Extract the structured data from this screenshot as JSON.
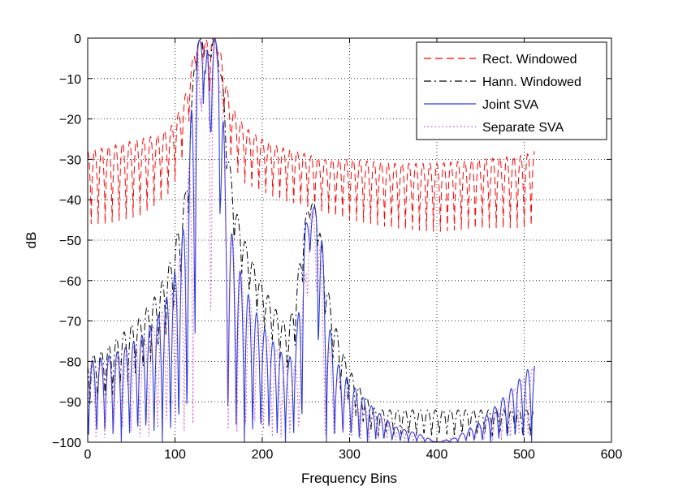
{
  "chart_data": {
    "type": "line",
    "title": "",
    "xlabel": "Frequency Bins",
    "ylabel": "dB",
    "xlim": [
      0,
      600
    ],
    "ylim": [
      -100,
      0
    ],
    "xticks": [
      0,
      100,
      200,
      300,
      400,
      500,
      600
    ],
    "yticks": [
      0,
      -10,
      -20,
      -30,
      -40,
      -50,
      -60,
      -70,
      -80,
      -90,
      -100
    ],
    "xtick_labels": [
      "0",
      "100",
      "200",
      "300",
      "400",
      "500",
      "600"
    ],
    "ytick_labels": [
      "0",
      "−10",
      "−20",
      "−30",
      "−40",
      "−50",
      "−60",
      "−70",
      "−80",
      "−90",
      "−100"
    ],
    "grid": true,
    "legend_position": "top-right",
    "series": [
      {
        "name": "Rect. Windowed",
        "color": "#ff0000",
        "style": "dashed",
        "x": [
          0,
          20,
          40,
          60,
          80,
          95,
          105,
          112,
          118,
          122,
          126,
          130,
          134,
          138,
          142,
          146,
          150,
          154,
          158,
          162,
          168,
          180,
          200,
          220,
          240,
          255,
          270,
          300,
          350,
          400,
          450,
          500,
          512
        ],
        "upper": [
          -28,
          -27,
          -26,
          -25,
          -24,
          -22,
          -18,
          -14,
          -8,
          -3,
          -1,
          0,
          0,
          -1,
          0,
          0,
          -2,
          -5,
          -10,
          -15,
          -18,
          -22,
          -25,
          -27,
          -28,
          -29,
          -30,
          -30,
          -31,
          -31,
          -30,
          -29,
          -28
        ],
        "lower": [
          -46,
          -46,
          -45,
          -44,
          -41,
          -38,
          -33,
          -26,
          -18,
          -10,
          -5,
          -2,
          -8,
          -20,
          -6,
          -2,
          -8,
          -15,
          -22,
          -28,
          -32,
          -36,
          -38,
          -40,
          -41,
          -42,
          -43,
          -45,
          -47,
          -48,
          -47,
          -47,
          -46
        ]
      },
      {
        "name": "Hann. Windowed",
        "color": "#000000",
        "style": "dashdot",
        "x": [
          0,
          20,
          40,
          60,
          80,
          95,
          105,
          112,
          118,
          122,
          126,
          130,
          134,
          138,
          142,
          146,
          150,
          154,
          158,
          162,
          168,
          175,
          185,
          200,
          215,
          230,
          240,
          248,
          252,
          256,
          260,
          266,
          272,
          280,
          290,
          300,
          310,
          320,
          330
        ],
        "upper": [
          -79,
          -77,
          -73,
          -69,
          -63,
          -55,
          -46,
          -38,
          -20,
          -6,
          -1,
          0,
          0,
          -4,
          0,
          0,
          -4,
          -10,
          -20,
          -30,
          -40,
          -47,
          -53,
          -61,
          -67,
          -72,
          -60,
          -46,
          -42,
          -40,
          -41,
          -47,
          -58,
          -68,
          -76,
          -82,
          -86,
          -89,
          -92
        ],
        "lower": [
          -92,
          -90,
          -88,
          -84,
          -79,
          -72,
          -64,
          -56,
          -36,
          -14,
          -4,
          -2,
          -6,
          -14,
          -4,
          -2,
          -8,
          -18,
          -30,
          -42,
          -52,
          -58,
          -64,
          -72,
          -78,
          -84,
          -76,
          -56,
          -48,
          -44,
          -46,
          -56,
          -70,
          -80,
          -88,
          -92,
          -95,
          -97,
          -99
        ]
      },
      {
        "name": "Joint SVA",
        "color": "#2a3cd8",
        "style": "solid",
        "x": [
          0,
          20,
          40,
          60,
          80,
          95,
          105,
          110,
          114,
          118,
          122,
          126,
          130,
          134,
          138,
          142,
          146,
          150,
          154,
          158,
          162,
          168,
          175,
          185,
          200,
          215,
          230,
          240,
          246,
          250,
          254,
          258,
          262,
          266,
          270,
          276,
          285,
          300,
          320,
          350,
          380,
          400,
          420,
          450,
          480,
          500,
          512
        ],
        "upper": [
          -80,
          -79,
          -77,
          -74,
          -69,
          -62,
          -54,
          -46,
          -36,
          -20,
          -6,
          -1,
          0,
          0,
          -4,
          0,
          0,
          -4,
          -12,
          -34,
          -44,
          -52,
          -58,
          -64,
          -71,
          -76,
          -80,
          -72,
          -52,
          -46,
          -43,
          -42,
          -41,
          -44,
          -54,
          -70,
          -80,
          -85,
          -90,
          -96,
          -98,
          -100,
          -99,
          -95,
          -88,
          -83,
          -80
        ],
        "lower": [
          -100,
          -100,
          -100,
          -100,
          -100,
          -100,
          -100,
          -100,
          -100,
          -100,
          -100,
          -20,
          -10,
          -20,
          -100,
          -20,
          -10,
          -20,
          -100,
          -100,
          -100,
          -100,
          -100,
          -100,
          -100,
          -100,
          -100,
          -100,
          -100,
          -60,
          -55,
          -52,
          -56,
          -100,
          -100,
          -100,
          -100,
          -100,
          -100,
          -100,
          -100,
          -100,
          -100,
          -100,
          -100,
          -100,
          -100
        ]
      },
      {
        "name": "Separate SVA",
        "color": "#cc44cc",
        "style": "dotted",
        "x": [
          0,
          20,
          40,
          60,
          80,
          95,
          105,
          112,
          118,
          122,
          126,
          130,
          134,
          138,
          142,
          146,
          150,
          154,
          158,
          165,
          180,
          200,
          220,
          235,
          245,
          250,
          254,
          258,
          262,
          266,
          270,
          280,
          300,
          330,
          400,
          450,
          480,
          500,
          512
        ],
        "upper": [
          -81,
          -80,
          -78,
          -75,
          -70,
          -63,
          -55,
          -45,
          -24,
          -8,
          -2,
          0,
          0,
          -5,
          0,
          0,
          -5,
          -14,
          -36,
          -48,
          -62,
          -72,
          -78,
          -84,
          -70,
          -52,
          -44,
          -42,
          -43,
          -50,
          -66,
          -82,
          -88,
          -93,
          -100,
          -96,
          -89,
          -84,
          -81
        ],
        "lower": [
          -100,
          -100,
          -100,
          -100,
          -100,
          -100,
          -100,
          -100,
          -100,
          -100,
          -100,
          -22,
          -12,
          -22,
          -100,
          -22,
          -12,
          -22,
          -100,
          -100,
          -100,
          -100,
          -100,
          -100,
          -100,
          -70,
          -62,
          -58,
          -64,
          -100,
          -100,
          -100,
          -100,
          -100,
          -100,
          -100,
          -100,
          -100,
          -100
        ]
      }
    ]
  }
}
